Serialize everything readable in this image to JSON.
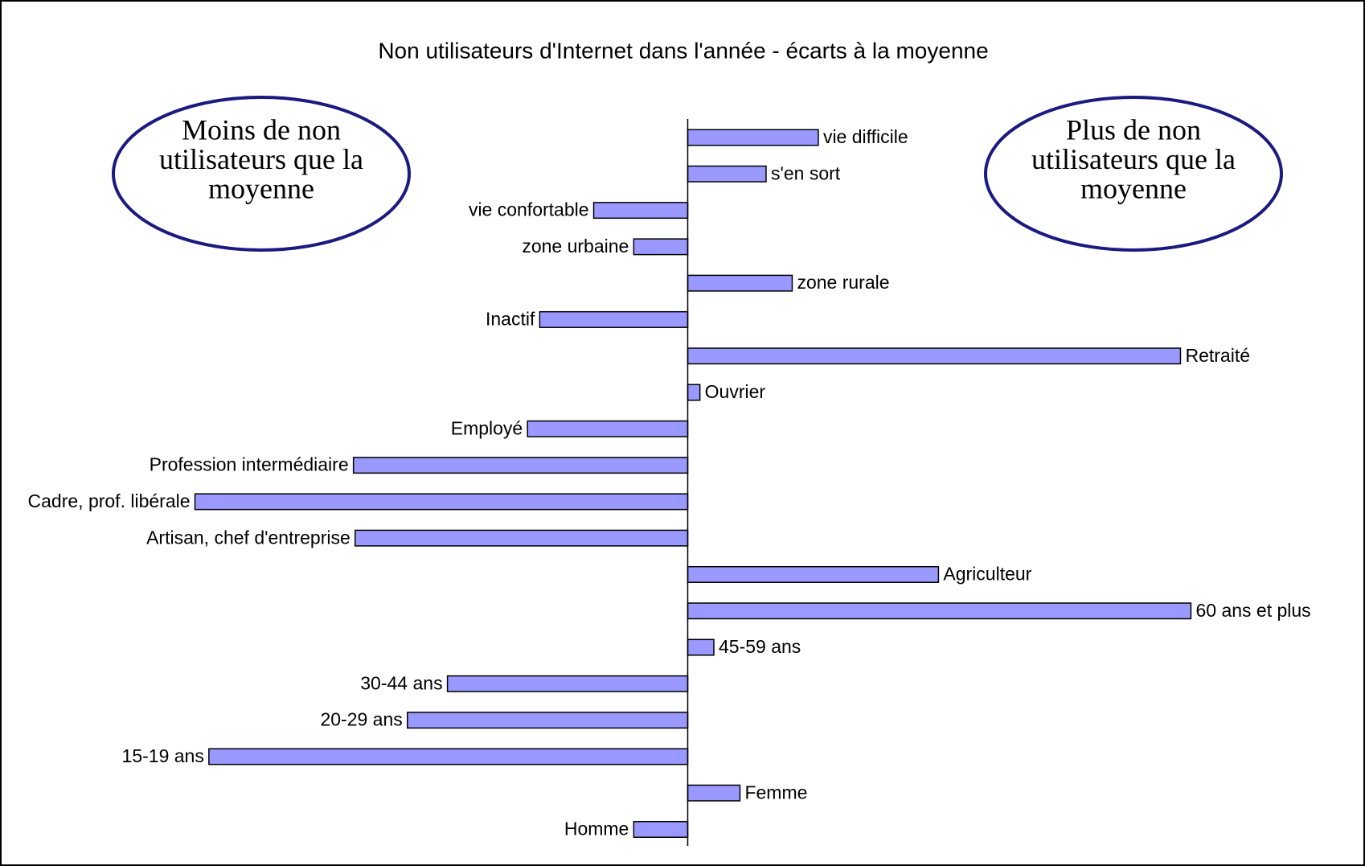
{
  "chart_data": {
    "type": "bar",
    "orientation": "horizontal",
    "title": "Non utilisateurs d'Internet dans l'année - écarts à la moyenne",
    "categories": [
      "vie difficile",
      "s'en sort",
      "vie confortable",
      "zone urbaine",
      "zone rurale",
      "Inactif",
      "Retraité",
      "Ouvrier",
      "Employé",
      "Profession intermédiaire",
      "Cadre, prof. libérale",
      "Artisan, chef d'entreprise",
      "Agriculteur",
      "60 ans et plus",
      "45-59 ans",
      "30-44 ans",
      "20-29 ans",
      "15-19 ans",
      "Femme",
      "Homme"
    ],
    "values": [
      7.5,
      4.5,
      -5.4,
      -3.1,
      6,
      -8.5,
      28.3,
      0.7,
      -9.2,
      -19.2,
      -28.3,
      -19.1,
      14.4,
      28.9,
      1.5,
      -13.8,
      -16.1,
      -27.5,
      3,
      -3.1
    ],
    "color": "#9999ff",
    "xlim": [
      -30,
      30
    ],
    "annotations": [
      {
        "lines": [
          "Moins de non",
          "utilisateurs que la",
          "moyenne"
        ]
      },
      {
        "lines": [
          "Plus de non",
          "utilisateurs que la",
          "moyenne"
        ]
      }
    ]
  }
}
